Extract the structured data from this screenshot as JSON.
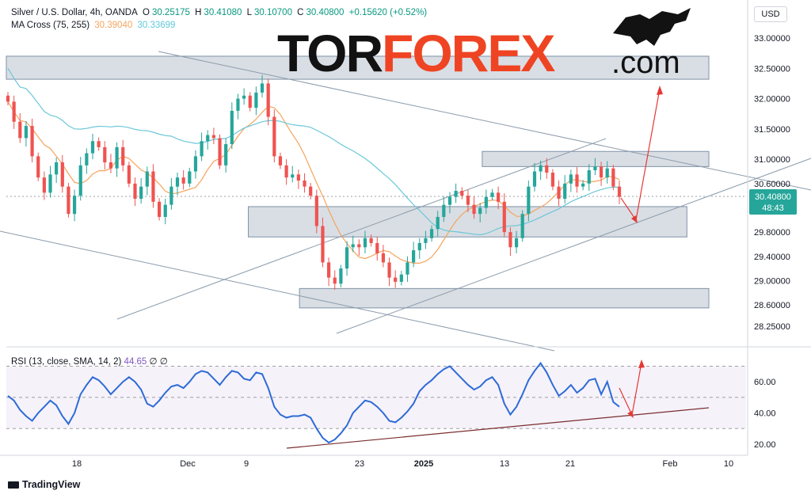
{
  "legend": {
    "symbol": "Silver / U.S. Dollar, 4h, OANDA",
    "open_label": "O",
    "open": "30.25175",
    "high_label": "H",
    "high": "30.41080",
    "low_label": "L",
    "low": "30.10700",
    "close_label": "C",
    "close": "30.40800",
    "change": "+0.15620 (+0.52%)",
    "ma_label": "MA Cross (75, 255)",
    "ma_fast": "30.39040",
    "ma_slow": "30.33699"
  },
  "rsi_legend": {
    "label": "RSI (13, close, SMA, 14, 2)",
    "value": "44.65",
    "icons": "∅ ∅"
  },
  "currency": "USD",
  "watermark": {
    "part1": "TOR",
    "part2": "FOREX",
    "part3": ".com"
  },
  "price_badge": {
    "price": "30.40800",
    "timer": "48:43",
    "color": "#26a69a"
  },
  "branding": "TradingView",
  "colors": {
    "up": "#26a69a",
    "down": "#ef5350",
    "ma_fast": "#f5a45c",
    "ma_slow": "#6cc7d8",
    "rsi": "#2e6bd6",
    "zone": "#9aa9b8",
    "trend": "#8b9bab",
    "arrow": "#e53935",
    "rsi_support": "#7a2d2d",
    "watermark_dark": "#121212",
    "watermark_red": "#ef4423"
  },
  "chart_data": {
    "type": "candlestick",
    "price_axis": {
      "ticks": [
        "33.00000",
        "32.50000",
        "32.00000",
        "31.50000",
        "31.00000",
        "30.60000",
        "29.80000",
        "29.40000",
        "29.00000",
        "28.60000",
        "28.25000"
      ]
    },
    "rsi_axis": {
      "ticks": [
        "60.00",
        "40.00",
        "20.00"
      ],
      "bands": [
        30,
        50,
        70
      ]
    },
    "x_axis": {
      "ticks": [
        "18",
        "Dec",
        "9",
        "23",
        "2025",
        "13",
        "21",
        "Feb",
        "10"
      ]
    },
    "close_series": [
      31.95,
      31.62,
      31.35,
      31.55,
      31.05,
      30.7,
      30.45,
      30.75,
      30.95,
      30.55,
      30.1,
      30.4,
      30.9,
      31.1,
      31.3,
      31.2,
      30.95,
      30.85,
      31.2,
      30.9,
      30.6,
      30.35,
      30.55,
      30.8,
      30.3,
      30.05,
      30.25,
      30.55,
      30.7,
      30.6,
      30.8,
      31.05,
      31.3,
      31.4,
      31.35,
      30.9,
      31.25,
      31.8,
      32.0,
      32.05,
      31.85,
      32.1,
      32.25,
      31.7,
      31.05,
      30.9,
      30.7,
      30.75,
      30.65,
      30.55,
      30.4,
      29.9,
      29.3,
      29.05,
      28.95,
      29.2,
      29.55,
      29.6,
      29.55,
      29.7,
      29.62,
      29.45,
      29.3,
      29.05,
      28.98,
      29.1,
      29.3,
      29.5,
      29.62,
      29.7,
      29.85,
      30.05,
      30.25,
      30.38,
      30.48,
      30.4,
      30.25,
      30.1,
      30.2,
      30.38,
      30.45,
      30.3,
      29.8,
      29.55,
      29.7,
      30.1,
      30.55,
      30.8,
      30.9,
      30.78,
      30.55,
      30.35,
      30.6,
      30.75,
      30.55,
      30.6,
      30.82,
      30.88,
      30.7,
      30.85,
      30.55,
      30.38
    ],
    "zones": [
      {
        "top": 32.7,
        "bottom": 32.32,
        "x0": "Nov 5",
        "x1": "Feb 13"
      },
      {
        "top": 31.13,
        "bottom": 30.88,
        "x0": "Jan 13",
        "x1": "Feb 13"
      },
      {
        "top": 30.22,
        "bottom": 29.72,
        "x0": "Dec 12",
        "x1": "Feb 10"
      },
      {
        "top": 28.87,
        "bottom": 28.55,
        "x0": "Dec 19",
        "x1": "Feb 13"
      }
    ],
    "rsi_values": [
      51,
      48,
      42,
      38,
      35,
      40,
      44,
      48,
      45,
      38,
      33,
      40,
      52,
      58,
      63,
      61,
      57,
      52,
      56,
      60,
      63,
      60,
      55,
      46,
      44,
      48,
      53,
      57,
      58,
      56,
      60,
      65,
      67,
      66,
      62,
      58,
      63,
      67,
      66,
      62,
      61,
      66,
      65,
      56,
      44,
      39,
      37,
      38,
      38,
      39,
      37,
      30,
      24,
      21,
      23,
      27,
      32,
      40,
      44,
      48,
      47,
      44,
      40,
      35,
      34,
      37,
      41,
      46,
      54,
      58,
      61,
      65,
      68,
      70,
      66,
      62,
      58,
      55,
      57,
      61,
      63,
      58,
      46,
      39,
      44,
      52,
      61,
      67,
      72,
      66,
      58,
      51,
      54,
      58,
      53,
      56,
      61,
      62,
      52,
      60,
      47,
      44
    ]
  }
}
